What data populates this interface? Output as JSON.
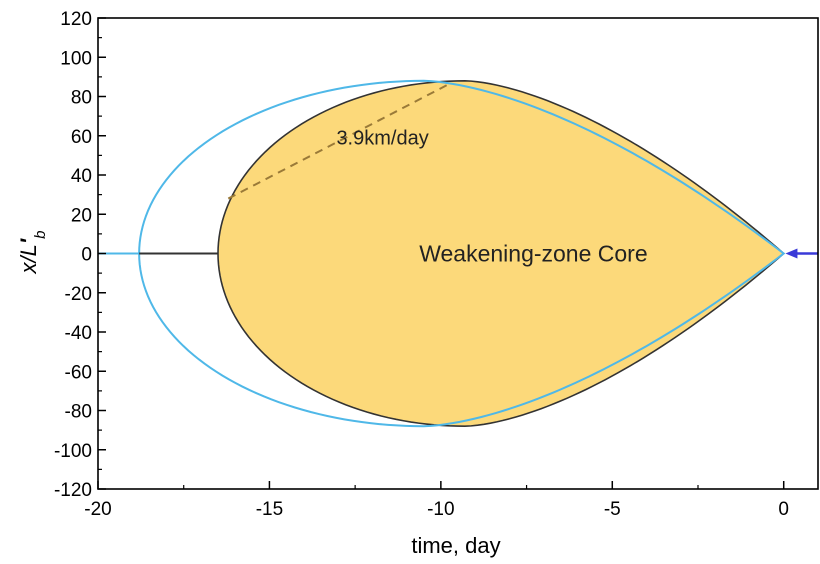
{
  "chart_data": {
    "type": "line",
    "xlabel": "time, day",
    "ylabel_main": "x/L",
    "ylabel_prime": "'",
    "ylabel_sub": "b",
    "xlim": [
      -20,
      1
    ],
    "ylim": [
      -120,
      120
    ],
    "xticks": [
      -20,
      -15,
      -10,
      -5,
      0
    ],
    "yticks": [
      -120,
      -100,
      -80,
      -60,
      -40,
      -20,
      0,
      20,
      40,
      60,
      80,
      100,
      120
    ],
    "grid": false,
    "colors": {
      "core_fill": "#fcd97a",
      "core_edge": "#333333",
      "blue_curve": "#4fb8e8",
      "rate_line": "#9a7a38",
      "arrow": "#3a3ad8"
    },
    "region": {
      "label": "Weakening-zone Core",
      "start_day": -16.5,
      "tip_day": -9.3,
      "max_half_width": 88,
      "end_day": 0
    },
    "outer_curve": {
      "start_day": -18.8,
      "tip_day": -10.5,
      "max_half_width": 88,
      "end_day": 0
    },
    "annotations": [
      {
        "text": "3.9km/day",
        "x": -11.7,
        "y": 59,
        "size": 20
      },
      {
        "text": "Weakening-zone Core",
        "x": -7.3,
        "y": 0,
        "size": 23
      }
    ],
    "rate_line": {
      "from": [
        -16.2,
        28
      ],
      "to": [
        -9.8,
        86
      ]
    },
    "baseline": [
      {
        "from": [
          -20,
          0
        ],
        "to": [
          -18.8,
          0
        ],
        "color_key": "blue_curve"
      },
      {
        "from": [
          -18.8,
          0
        ],
        "to": [
          -16.5,
          0
        ],
        "color_key": "core_edge"
      }
    ],
    "arrow": {
      "from": [
        1,
        0
      ],
      "to": [
        0.05,
        0
      ]
    }
  }
}
